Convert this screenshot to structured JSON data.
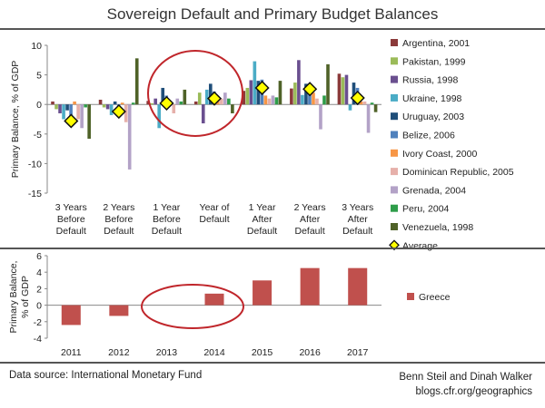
{
  "title": "Sovereign Default and Primary Budget Balances",
  "footer": {
    "source": "Data source: International Monetary Fund",
    "credit_line1": "Benn Steil and Dinah Walker",
    "credit_line2": "blogs.cfr.org/geographics"
  },
  "colors": {
    "annotation_circle": "#c0262b",
    "average_marker_fill": "#ffff00",
    "greece": "#c0504d"
  },
  "chart_data": [
    {
      "type": "bar",
      "ylabel": "Primary Balance, % of GDP",
      "ylim": [
        -15,
        10
      ],
      "yticks": [
        10,
        5,
        0,
        -5,
        -10,
        -15
      ],
      "categories": [
        [
          "3 Years",
          "Before",
          "Default"
        ],
        [
          "2 Years",
          "Before",
          "Default"
        ],
        [
          "1 Year",
          "Before",
          "Default"
        ],
        [
          "Year of",
          "Default"
        ],
        [
          "1 Year",
          "After",
          "Default"
        ],
        [
          "2 Years",
          "After",
          "Default"
        ],
        [
          "3 Years",
          "After",
          "Default"
        ]
      ],
      "legend_position": "right",
      "series": [
        {
          "name": "Argentina, 2001",
          "color": "#8b3a3a",
          "values": [
            0.5,
            0.8,
            0.6,
            0.5,
            2.3,
            2.7,
            5.2
          ]
        },
        {
          "name": "Pakistan, 1999",
          "color": "#9bbb59",
          "values": [
            -0.8,
            -0.5,
            0.2,
            2.0,
            2.8,
            3.7,
            4.6
          ]
        },
        {
          "name": "Russia, 1998",
          "color": "#6a4f8f",
          "values": [
            -1.5,
            -0.8,
            1.0,
            -3.2,
            4.1,
            7.5,
            5.0
          ]
        },
        {
          "name": "Ukraine, 1998",
          "color": "#4bacc6",
          "values": [
            -2.5,
            -1.8,
            -4.0,
            2.5,
            7.3,
            1.6,
            -1.0
          ]
        },
        {
          "name": "Uruguay, 2003",
          "color": "#1f4e79",
          "values": [
            -1.0,
            0.5,
            2.8,
            3.5,
            4.0,
            3.5,
            3.7
          ]
        },
        {
          "name": "Belize, 2006",
          "color": "#4f81bd",
          "values": [
            -3.5,
            -1.5,
            1.5,
            2.2,
            4.2,
            3.5,
            2.8
          ]
        },
        {
          "name": "Ivory Coast, 2000",
          "color": "#f79646",
          "values": [
            0.5,
            0.3,
            0.5,
            0.7,
            1.5,
            2.0,
            0.5
          ]
        },
        {
          "name": "Dominican Republic, 2005",
          "color": "#e6b0aa",
          "values": [
            -2.5,
            -3.0,
            -1.5,
            1.0,
            1.0,
            1.0,
            0.5
          ]
        },
        {
          "name": "Grenada, 2004",
          "color": "#b3a2c7",
          "values": [
            -4.0,
            -11.0,
            1.0,
            2.0,
            1.5,
            -4.2,
            -4.8
          ]
        },
        {
          "name": "Peru, 2004",
          "color": "#2e9d4a",
          "values": [
            -0.5,
            0.3,
            0.5,
            1.0,
            1.2,
            1.5,
            0.3
          ]
        },
        {
          "name": "Venezuela, 1998",
          "color": "#4f6228",
          "values": [
            -5.8,
            7.8,
            2.5,
            -1.5,
            4.0,
            6.8,
            -1.3
          ]
        }
      ],
      "average": {
        "name": "Average",
        "values": [
          -2.8,
          -1.2,
          0.2,
          1.0,
          2.8,
          2.6,
          1.1
        ]
      }
    },
    {
      "type": "bar",
      "ylabel": "Primary Balance, % of GDP",
      "ylim": [
        -4,
        6
      ],
      "yticks": [
        6,
        4,
        2,
        0,
        -2,
        -4
      ],
      "categories": [
        "2011",
        "2012",
        "2013",
        "2014",
        "2015",
        "2016",
        "2017"
      ],
      "legend_position": "right",
      "series": [
        {
          "name": "Greece",
          "color": "#c0504d",
          "values": [
            -2.4,
            -1.3,
            0.0,
            1.4,
            3.0,
            4.5,
            4.5
          ]
        }
      ]
    }
  ]
}
